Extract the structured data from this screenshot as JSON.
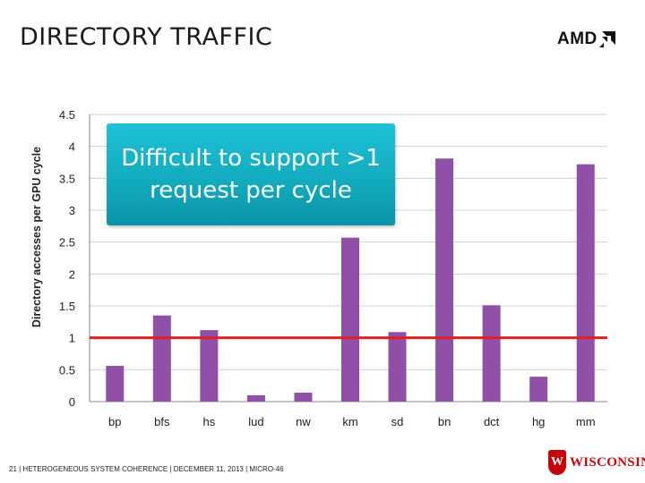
{
  "slide": {
    "title": "DIRECTORY TRAFFIC",
    "logo_text": "AMD",
    "logo_icon": "amd-arrow-icon",
    "callout_text": "Difficult to support >1 request per cycle",
    "footer_text": "21  |   HETEROGENEOUS SYSTEM COHERENCE  |  DECEMBER 11, 2013  |  MICRO-46",
    "footer_logo_text": "WISCONSIN",
    "footer_logo_mark": "W"
  },
  "colors": {
    "bar": "#9150a8",
    "reference_line": "#e02020",
    "gridline": "#d0d0d0",
    "callout": "#15aec2"
  },
  "chart_data": {
    "type": "bar",
    "title": "",
    "xlabel": "",
    "ylabel": "Directory accesses per GPU cycle",
    "categories": [
      "bp",
      "bfs",
      "hs",
      "lud",
      "nw",
      "km",
      "sd",
      "bn",
      "dct",
      "hg",
      "mm"
    ],
    "values": [
      0.56,
      1.35,
      1.12,
      0.1,
      0.14,
      2.57,
      1.09,
      3.81,
      1.51,
      0.39,
      3.72
    ],
    "ylim": [
      0,
      4.5
    ],
    "yticks": [
      "0",
      "0.5",
      "1",
      "1.5",
      "2",
      "2.5",
      "3",
      "3.5",
      "4",
      "4.5"
    ],
    "reference_line": 1,
    "grid": true,
    "legend": "none"
  }
}
